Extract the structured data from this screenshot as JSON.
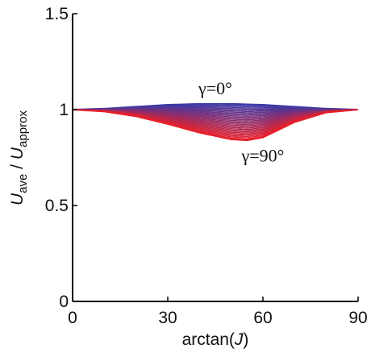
{
  "chart_data": {
    "type": "line",
    "title": "",
    "xlabel": {
      "prefix": "arctan(",
      "italic": "J",
      "suffix": ")"
    },
    "ylabel": {
      "num_main": "U",
      "num_sub": "ave",
      "sep": " / ",
      "den_main": "U",
      "den_sub": "approx"
    },
    "xlim": [
      0,
      90
    ],
    "ylim": [
      0,
      1.5
    ],
    "x_ticks": [
      0,
      30,
      60,
      90
    ],
    "y_ticks": [
      0,
      0.5,
      1,
      1.5
    ],
    "x_tick_labels": [
      "0",
      "30",
      "60",
      "90"
    ],
    "y_tick_labels": [
      "0",
      "0.5",
      "1",
      "1.5"
    ],
    "grid": false,
    "legend": "none",
    "family": {
      "parameter": "γ",
      "from_deg": 0,
      "to_deg": 90,
      "count": 31,
      "color_start": "#3a3aa8",
      "color_end": "#e8202a"
    },
    "series": [
      {
        "name": "γ=0°",
        "x": [
          0,
          10,
          20,
          30,
          40,
          50,
          60,
          70,
          80,
          90
        ],
        "y": [
          1.0,
          1.005,
          1.015,
          1.025,
          1.03,
          1.03,
          1.025,
          1.015,
          1.005,
          1.0
        ]
      },
      {
        "name": "γ=90°",
        "x": [
          0,
          10,
          20,
          30,
          40,
          50,
          55,
          60,
          70,
          80,
          90
        ],
        "y": [
          1.0,
          0.99,
          0.965,
          0.925,
          0.88,
          0.845,
          0.84,
          0.855,
          0.935,
          0.985,
          1.0
        ]
      }
    ],
    "annotations": [
      {
        "text": "γ=0°",
        "x": 45,
        "y": 1.08
      },
      {
        "text": "γ=90°",
        "x": 60,
        "y": 0.73
      }
    ]
  }
}
